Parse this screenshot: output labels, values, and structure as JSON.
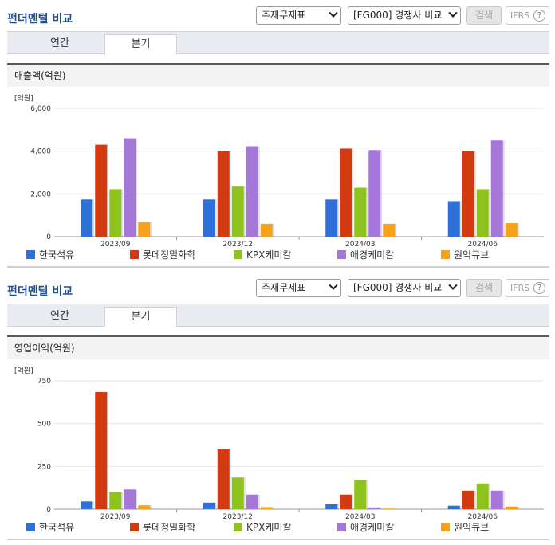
{
  "panels": [
    {
      "header": {
        "title": "펀더멘털 비교",
        "select1": "주재무제표",
        "select2": "[FG000] 경쟁사 비교",
        "search_button": "검색",
        "ifrs_label": "IFRS",
        "help_glyph": "?"
      },
      "tabs": [
        {
          "label": "연간"
        },
        {
          "label": "분기"
        }
      ],
      "section_title": "매출액(억원)",
      "legend": [
        {
          "label": "한국석유",
          "color": "#2e6fd8"
        },
        {
          "label": "롯데정밀화학",
          "color": "#d23b0f"
        },
        {
          "label": "KPX케미칼",
          "color": "#8dc21f"
        },
        {
          "label": "애경케미칼",
          "color": "#a577d8"
        },
        {
          "label": "원익큐브",
          "color": "#f7a21b"
        }
      ]
    },
    {
      "header": {
        "title": "펀더멘털 비교",
        "select1": "주재무제표",
        "select2": "[FG000] 경쟁사 비교",
        "search_button": "검색",
        "ifrs_label": "IFRS",
        "help_glyph": "?"
      },
      "tabs": [
        {
          "label": "연간"
        },
        {
          "label": "분기"
        }
      ],
      "section_title": "영업이익(억원)",
      "legend": [
        {
          "label": "한국석유",
          "color": "#2e6fd8"
        },
        {
          "label": "롯데정밀화학",
          "color": "#d23b0f"
        },
        {
          "label": "KPX케미칼",
          "color": "#8dc21f"
        },
        {
          "label": "애경케미칼",
          "color": "#a577d8"
        },
        {
          "label": "원익큐브",
          "color": "#f7a21b"
        }
      ]
    }
  ],
  "chart_data": [
    {
      "type": "bar",
      "unit_label": "[억원]",
      "title": "매출액(억원)",
      "categories": [
        "2023/09",
        "2023/12",
        "2024/03",
        "2024/06"
      ],
      "ylim": [
        0,
        6000
      ],
      "yticks": [
        0,
        2000,
        4000,
        6000
      ],
      "ytick_labels": [
        "0",
        "2,000",
        "4,000",
        "6,000"
      ],
      "grid": true,
      "legend_position": "bottom",
      "series": [
        {
          "name": "한국석유",
          "color": "#2e6fd8",
          "values": [
            1740,
            1740,
            1740,
            1660
          ]
        },
        {
          "name": "롯데정밀화학",
          "color": "#d23b0f",
          "values": [
            4300,
            4020,
            4120,
            4010
          ]
        },
        {
          "name": "KPX케미칼",
          "color": "#8dc21f",
          "values": [
            2220,
            2340,
            2290,
            2220
          ]
        },
        {
          "name": "애경케미칼",
          "color": "#a577d8",
          "values": [
            4600,
            4230,
            4050,
            4500
          ]
        },
        {
          "name": "원익큐브",
          "color": "#f7a21b",
          "values": [
            680,
            600,
            600,
            630
          ]
        }
      ]
    },
    {
      "type": "bar",
      "unit_label": "[억원]",
      "title": "영업이익(억원)",
      "categories": [
        "2023/09",
        "2023/12",
        "2024/03",
        "2024/06"
      ],
      "ylim": [
        0,
        750
      ],
      "yticks": [
        0,
        250,
        500,
        750
      ],
      "ytick_labels": [
        "0",
        "250",
        "500",
        "750"
      ],
      "grid": true,
      "legend_position": "bottom",
      "series": [
        {
          "name": "한국석유",
          "color": "#2e6fd8",
          "values": [
            45,
            38,
            28,
            20
          ]
        },
        {
          "name": "롯데정밀화학",
          "color": "#d23b0f",
          "values": [
            685,
            350,
            85,
            108
          ]
        },
        {
          "name": "KPX케미칼",
          "color": "#8dc21f",
          "values": [
            100,
            185,
            170,
            150
          ]
        },
        {
          "name": "애경케미칼",
          "color": "#a577d8",
          "values": [
            115,
            85,
            10,
            108
          ]
        },
        {
          "name": "원익큐브",
          "color": "#f7a21b",
          "values": [
            22,
            12,
            3,
            15
          ]
        }
      ]
    }
  ]
}
